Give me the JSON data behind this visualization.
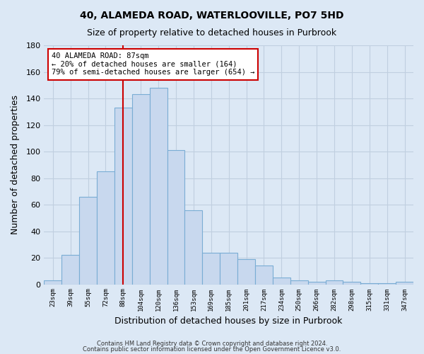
{
  "title": "40, ALAMEDA ROAD, WATERLOOVILLE, PO7 5HD",
  "subtitle": "Size of property relative to detached houses in Purbrook",
  "xlabel": "Distribution of detached houses by size in Purbrook",
  "ylabel": "Number of detached properties",
  "bar_labels": [
    "23sqm",
    "39sqm",
    "55sqm",
    "72sqm",
    "88sqm",
    "104sqm",
    "120sqm",
    "136sqm",
    "153sqm",
    "169sqm",
    "185sqm",
    "201sqm",
    "217sqm",
    "234sqm",
    "250sqm",
    "266sqm",
    "282sqm",
    "298sqm",
    "315sqm",
    "331sqm",
    "347sqm"
  ],
  "bar_values": [
    3,
    22,
    66,
    85,
    133,
    143,
    148,
    101,
    56,
    24,
    24,
    19,
    14,
    5,
    3,
    2,
    3,
    2,
    1,
    1,
    2
  ],
  "bar_color": "#c8d8ee",
  "bar_edge_color": "#7aadd4",
  "vline_x_index": 4,
  "vline_color": "#cc0000",
  "annotation_title": "40 ALAMEDA ROAD: 87sqm",
  "annotation_line1": "← 20% of detached houses are smaller (164)",
  "annotation_line2": "79% of semi-detached houses are larger (654) →",
  "annotation_box_facecolor": "#ffffff",
  "annotation_box_edgecolor": "#cc0000",
  "ylim": [
    0,
    180
  ],
  "yticks": [
    0,
    20,
    40,
    60,
    80,
    100,
    120,
    140,
    160,
    180
  ],
  "footer1": "Contains HM Land Registry data © Crown copyright and database right 2024.",
  "footer2": "Contains public sector information licensed under the Open Government Licence v3.0.",
  "bg_color": "#dce8f5",
  "plot_bg_color": "#dce8f5",
  "grid_color": "#c0cfe0",
  "title_fontsize": 10,
  "subtitle_fontsize": 9
}
